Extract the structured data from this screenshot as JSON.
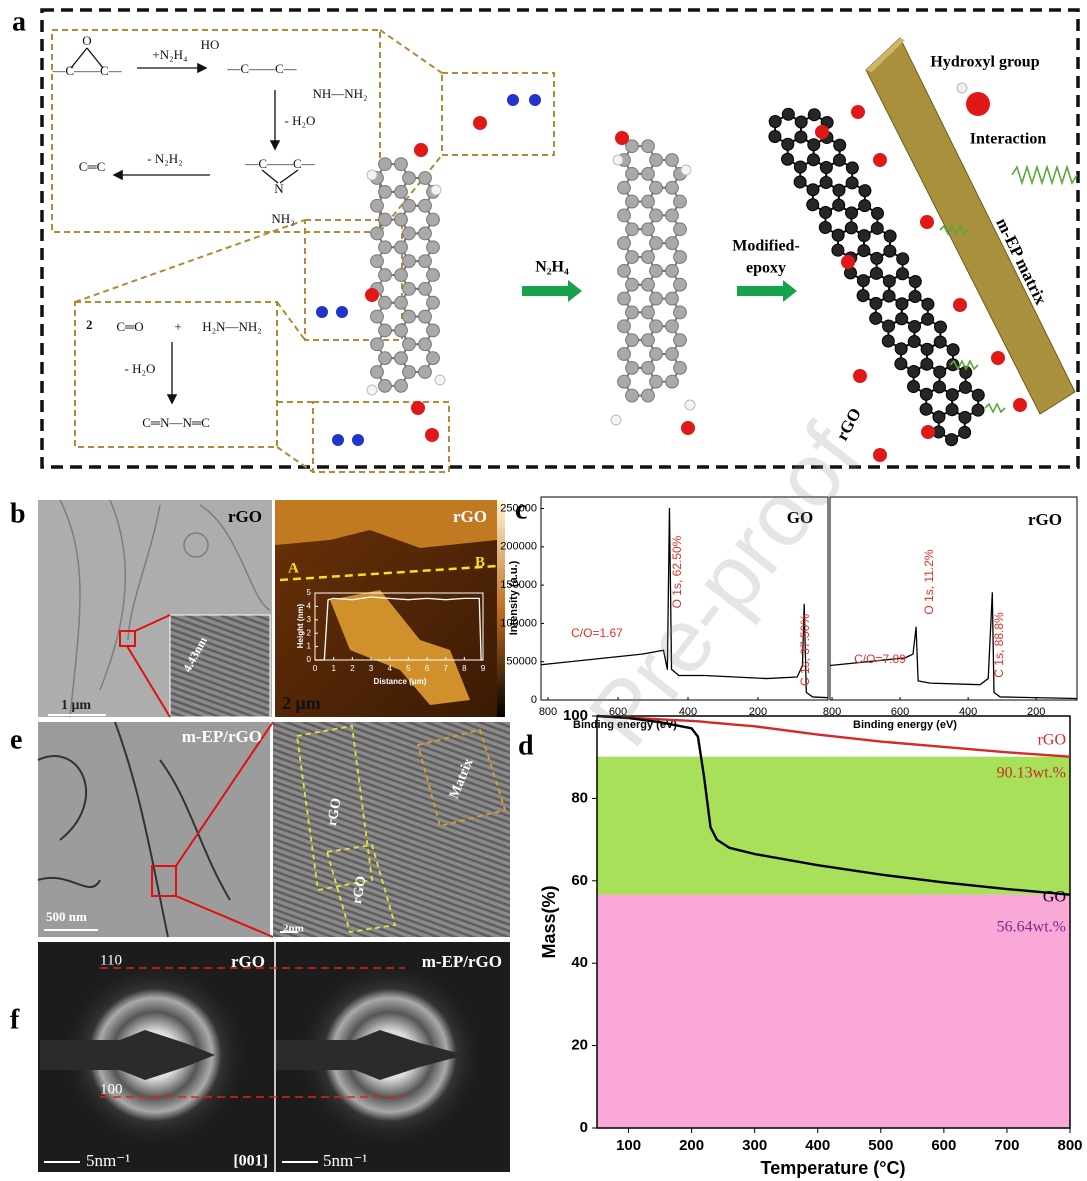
{
  "panel_a": {
    "label": "a",
    "epoxide_O": "O",
    "epoxide": "—C——C—",
    "reagent": "+N₂H₄",
    "hydroxyl": "HO",
    "adduct": "—C——C—",
    "hydrazine_tail": "NH—NH₂",
    "dehydration": "- H₂O",
    "aziridine": "—C——C—",
    "aziridine_N": "N",
    "aziridine_NH2": "NH₂",
    "elimination": "- N₂H₂",
    "alkene": "C═C",
    "coefficient": "2",
    "carbonyl": "C═O",
    "plus": "+",
    "hydrazine": "H₂N—NH₂",
    "condensation": "- H₂O",
    "azine": "C═N—N═C",
    "step_1": "N₂H₄",
    "step_2_line_1": "Modified-",
    "step_2_line_2": "epoxy",
    "legend_hydroxyl": "Hydroxyl group",
    "legend_interaction": "Interaction",
    "matrix": "m-EP matrix",
    "sheet": "rGO"
  },
  "panel_b": {
    "label": "b",
    "tem_title": "rGO",
    "tem_scale": "1 μm",
    "spacing": "4.43nm",
    "afm_title": "rGO",
    "point_a": "A",
    "point_b": "B",
    "afm_scale": "2 μm"
  },
  "panel_c": {
    "label": "c"
  },
  "panel_d": {
    "label": "d"
  },
  "panel_e": {
    "label": "e",
    "title": "m-EP/rGO",
    "scale_left": "500 nm",
    "scale_right": "2nm",
    "region_1": "rGO",
    "region_2": "rGO",
    "region_3": "Matrix"
  },
  "panel_f": {
    "label": "f",
    "left_title": "rGO",
    "right_title": "m-EP/rGO",
    "ring_110": "110",
    "ring_100": "100",
    "zone_axis": "[001]",
    "scale_left": "5nm⁻¹",
    "scale_right": "5nm⁻¹"
  },
  "watermark": "Pre-proof",
  "chart_data": [
    {
      "type": "line",
      "title": "GO",
      "x_label": "Binding energy (eV)",
      "y_label": "Intensity (a.u.)",
      "x": [
        820,
        529,
        470,
        459,
        453,
        447,
        426,
        353,
        176,
        88,
        73,
        68,
        62,
        44,
        0
      ],
      "values": [
        46000,
        60000,
        65000,
        40000,
        250000,
        40000,
        32000,
        32000,
        28000,
        30000,
        45000,
        125000,
        10000,
        4000,
        3000
      ],
      "color": "#000000",
      "xlim": [
        820,
        0
      ],
      "xticks": [
        800,
        600,
        400,
        200
      ],
      "ylim": [
        0,
        265000
      ],
      "yticks": [
        0,
        50000,
        100000,
        150000,
        200000,
        250000
      ],
      "annotations": [
        "C/O=1.67",
        "O 1s, 62.50%",
        "C 1s, 37.50%"
      ]
    },
    {
      "type": "line",
      "title": "rGO",
      "x_label": "Binding energy (eV)",
      "x": [
        806,
        585,
        562,
        553,
        547,
        512,
        365,
        341,
        329,
        324,
        306,
        80
      ],
      "values": [
        45000,
        55000,
        60000,
        95000,
        25000,
        22000,
        20000,
        28000,
        140000,
        10000,
        4000,
        2000
      ],
      "color": "#000000",
      "xlim": [
        806,
        80
      ],
      "xticks": [
        800,
        600,
        400,
        200
      ],
      "ylim": [
        0,
        265000
      ],
      "annotations": [
        "C/O=7.89",
        "O 1s, 11.2%",
        "C 1s, 88.8%"
      ]
    },
    {
      "type": "line",
      "x_label": "Temperature (°C)",
      "y_label": "Mass(%)",
      "x": [
        50,
        100,
        150,
        200,
        210,
        220,
        230,
        240,
        260,
        300,
        400,
        500,
        600,
        700,
        800
      ],
      "series": [
        {
          "name": "rGO",
          "color": "#d42a2a",
          "values": [
            100,
            99.6,
            99.2,
            98.8,
            98.7,
            98.6,
            98.4,
            98.3,
            98,
            97.5,
            95.5,
            93.8,
            92.5,
            91.2,
            90.13
          ]
        },
        {
          "name": "GO",
          "color": "#000000",
          "values": [
            100,
            99.5,
            98.5,
            97,
            95,
            85,
            73,
            70,
            68,
            66.5,
            63.8,
            61.5,
            59.6,
            58,
            56.64
          ]
        }
      ],
      "xlim": [
        50,
        800
      ],
      "xticks": [
        100,
        200,
        300,
        400,
        500,
        600,
        700,
        800
      ],
      "ylim": [
        0,
        100
      ],
      "yticks": [
        0,
        20,
        40,
        60,
        80,
        100
      ],
      "annotations": [
        "90.13wt.%",
        "56.64wt.%"
      ]
    },
    {
      "type": "line",
      "x_label": "Distance (μm)",
      "y_label": "Height (nm)",
      "x": [
        0,
        0.5,
        0.7,
        1,
        2,
        3,
        4,
        5,
        6,
        7,
        8,
        8.8,
        8.9,
        9
      ],
      "values": [
        0,
        0,
        4.5,
        4.6,
        4.5,
        4.7,
        4.6,
        4.5,
        4.6,
        4.5,
        4.6,
        4.6,
        0,
        0
      ],
      "color": "#ffffff",
      "xlim": [
        0,
        9
      ],
      "xticks": [
        0,
        1,
        2,
        3,
        4,
        5,
        6,
        7,
        8,
        9
      ],
      "ylim": [
        0,
        5
      ],
      "yticks": [
        0,
        1,
        2,
        3,
        4,
        5
      ]
    }
  ]
}
